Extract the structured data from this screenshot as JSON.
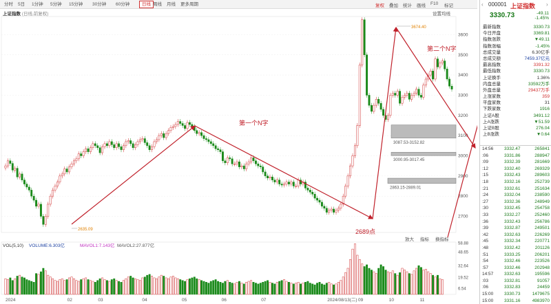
{
  "toolbar": {
    "tabs": [
      "分时",
      "5日",
      "1分钟",
      "5分钟",
      "15分钟",
      "30分钟",
      "60分钟",
      "日线",
      "周线",
      "月线",
      "更多周期"
    ],
    "active_tab": "日线",
    "buttons": [
      "复权",
      "叠加",
      "统计",
      "画线",
      "F10",
      "标记",
      "自选",
      "返回"
    ]
  },
  "chart_header": {
    "title": "上证指数",
    "subtitle": "(日线,前复权)",
    "settings": "设置均线"
  },
  "annotations": {
    "n1_label": "第一个N字",
    "n2_label": "第二个N字",
    "low_label": "2689点",
    "high_value": "3674.40",
    "low_value": "2635.09",
    "gap1": "3087.53-3152.82",
    "gap2": "3000.95-3017.45",
    "gap3": "2863.15-2889.01"
  },
  "volume_header": {
    "label": "VOL(5,10)",
    "volume": "VOLUME:6.303亿",
    "mavol1": "MAVOL1:7.143亿",
    "mavol2": "MAVOL2:27.877亿"
  },
  "volume_buttons": [
    "放大",
    "指标",
    "换指标"
  ],
  "chart_data": {
    "type": "candlestick",
    "title": "上证指数",
    "y_ticks": [
      2700,
      2800,
      2900,
      3000,
      3100,
      3200,
      3300,
      3400,
      3500,
      3600
    ],
    "ylim": [
      2620,
      3690
    ],
    "x_ticks": [
      "2024",
      "02",
      "03",
      "04",
      "05",
      "06",
      "07",
      "2024/08/13(二)",
      "09",
      "10",
      "11"
    ],
    "vol_ticks": [
      "58.88",
      "48.65",
      "32.64",
      "19.52",
      "6.54",
      "13.13"
    ],
    "annotated_points": [
      {
        "label": "low",
        "value": 2635.09
      },
      {
        "label": "2689点",
        "value": 2689
      },
      {
        "label": "high",
        "value": 3674.4
      }
    ],
    "gaps": [
      [
        3087.53,
        3152.82
      ],
      [
        3000.95,
        3017.45
      ],
      [
        2863.15,
        2889.01
      ]
    ],
    "closes": [
      2950,
      2975,
      2962,
      2929,
      2938,
      2895,
      2910,
      2880,
      2860,
      2845,
      2830,
      2800,
      2780,
      2750,
      2760,
      2700,
      2660,
      2700,
      2760,
      2800,
      2830,
      2850,
      2870,
      2900,
      2910,
      2935,
      2920,
      2945,
      2960,
      2975,
      2985,
      3010,
      3000,
      3020,
      3035,
      3020,
      3040,
      3060,
      3050,
      3040,
      3015,
      3045,
      3060,
      3050,
      3070,
      3055,
      3040,
      3060,
      3045,
      3030,
      3050,
      3070,
      3075,
      3060,
      3040,
      3055,
      3070,
      3080,
      3085,
      3065,
      3050,
      3030,
      3045,
      3070,
      3080,
      3100,
      3110,
      3090,
      3110,
      3125,
      3140,
      3145,
      3155,
      3170,
      3160,
      3150,
      3135,
      3165,
      3155,
      3145,
      3125,
      3110,
      3115,
      3100,
      3085,
      3080,
      3070,
      3060,
      3050,
      3035,
      3030,
      3020,
      2975,
      2965,
      2990,
      2985,
      2960,
      2960,
      2970,
      2945,
      2950,
      2935,
      2960,
      2970,
      2990,
      2975,
      2960,
      2950,
      2945,
      2920,
      2900,
      2890,
      2895,
      2880,
      2870,
      2880,
      2860,
      2855,
      2860,
      2870,
      2860,
      2870,
      2850,
      2850,
      2880,
      2860,
      2870,
      2840,
      2830,
      2820,
      2810,
      2790,
      2780,
      2770,
      2750,
      2740,
      2720,
      2730,
      2736,
      2720,
      2730,
      2740,
      2760,
      2800,
      2850,
      2900,
      2950,
      3000,
      3050,
      3150,
      3450,
      3674,
      3500,
      3300,
      3250,
      3220,
      3250,
      3280,
      3260,
      3230,
      3200,
      3180,
      3200,
      3300,
      3310,
      3300,
      3320,
      3260,
      3290,
      3300,
      3310,
      3280,
      3300,
      3310,
      3330,
      3300,
      3290,
      3350,
      3380,
      3400,
      3420,
      3380,
      3480,
      3440,
      3460,
      3470,
      3430,
      3380,
      3345,
      3330
    ],
    "volumes": [
      18,
      17,
      19,
      16,
      18,
      21,
      22,
      20,
      19,
      17,
      16,
      15,
      14,
      24,
      23,
      26,
      30,
      27,
      22,
      20,
      18,
      16,
      15,
      17,
      18,
      16,
      17,
      19,
      20,
      18,
      16,
      15,
      17,
      18,
      19,
      17,
      16,
      15,
      14,
      16,
      18,
      19,
      17,
      16,
      15,
      17,
      18,
      16,
      15,
      14,
      16,
      18,
      20,
      21,
      19,
      18,
      17,
      16,
      19,
      20,
      22,
      23,
      21,
      19,
      18,
      20,
      22,
      21,
      19,
      18,
      20,
      21,
      19,
      18,
      17,
      16,
      15,
      17,
      18,
      19,
      20,
      18,
      17,
      16,
      15,
      14,
      13,
      15,
      16,
      17,
      15,
      14,
      13,
      15,
      16,
      14,
      13,
      12,
      14,
      15,
      13,
      12,
      14,
      15,
      16,
      14,
      13,
      12,
      13,
      14,
      15,
      16,
      14,
      13,
      12,
      14,
      15,
      16,
      17,
      15,
      14,
      13,
      12,
      13,
      14,
      12,
      13,
      14,
      15,
      13,
      12,
      11,
      13,
      14,
      12,
      11,
      13,
      14,
      12,
      11,
      12,
      14,
      16,
      20,
      25,
      30,
      40,
      52,
      58,
      45,
      40,
      35,
      32,
      34,
      30,
      28,
      26,
      24,
      30,
      34,
      32,
      28,
      26,
      25,
      27,
      24,
      22,
      25,
      30,
      28,
      26,
      24,
      23,
      27,
      30,
      33,
      31,
      28,
      29,
      26,
      24,
      22,
      20,
      22,
      18,
      17
    ]
  },
  "sidebar": {
    "code": "000001",
    "name": "上证指数",
    "price": "3330.73",
    "change": "-49.11",
    "change_pct": "-1.45%",
    "stats": [
      {
        "k": "最新指数",
        "v": "3330.73",
        "c": "#1a7a1a"
      },
      {
        "k": "今日开盘",
        "v": "3369.81",
        "c": "#1a7a1a"
      },
      {
        "k": "指数涨跌",
        "v": "▼49.11",
        "c": "#1a7a1a"
      },
      {
        "k": "指数涨幅",
        "v": "-1.45%",
        "c": "#1a7a1a"
      },
      {
        "k": "总成交量",
        "v": "6.30亿手",
        "c": "#333"
      },
      {
        "k": "总成交额",
        "v": "7459.37亿元",
        "c": "#1a3fa0"
      },
      {
        "k": "最高指数",
        "v": "3391.32",
        "c": "#d03030"
      },
      {
        "k": "最低指数",
        "v": "3330.73",
        "c": "#1a7a1a"
      },
      {
        "k": "上证换手",
        "v": "1.36%",
        "c": "#333"
      },
      {
        "k": "内盘总量",
        "v": "33592万手",
        "c": "#1a7a1a"
      },
      {
        "k": "外盘总量",
        "v": "29437万手",
        "c": "#d03030"
      },
      {
        "k": "上涨家数",
        "v": "359",
        "c": "#d03030"
      },
      {
        "k": "平盘家数",
        "v": "31",
        "c": "#333"
      },
      {
        "k": "下跌家数",
        "v": "1916",
        "c": "#1a7a1a"
      },
      {
        "k": "上证A股",
        "v": "3491.12",
        "c": "#1a7a1a"
      },
      {
        "k": "上A涨跌",
        "v": "▼51.59",
        "c": "#1a7a1a"
      },
      {
        "k": "上证B股",
        "v": "276.04",
        "c": "#1a7a1a"
      },
      {
        "k": "上B涨跌",
        "v": "▼0.64",
        "c": "#1a7a1a"
      }
    ],
    "ticks": [
      {
        "t": "14:56",
        "p": "3332.47",
        "q": "265841"
      },
      {
        "t": ":06",
        "p": "3331.86",
        "q": "288947"
      },
      {
        "t": ":09",
        "p": "3332.39",
        "q": "281669"
      },
      {
        "t": ":12",
        "p": "3332.40",
        "q": "269329"
      },
      {
        "t": ":15",
        "p": "3332.43",
        "q": "289603"
      },
      {
        "t": ":18",
        "p": "3332.16",
        "q": "252739"
      },
      {
        "t": ":21",
        "p": "3332.61",
        "q": "251634"
      },
      {
        "t": ":24",
        "p": "3332.04",
        "q": "238590"
      },
      {
        "t": ":27",
        "p": "3332.36",
        "q": "248949"
      },
      {
        "t": ":30",
        "p": "3332.45",
        "q": "254758"
      },
      {
        "t": ":33",
        "p": "3332.27",
        "q": "252460"
      },
      {
        "t": ":36",
        "p": "3332.43",
        "q": "256786"
      },
      {
        "t": ":39",
        "p": "3332.87",
        "q": "249501"
      },
      {
        "t": ":42",
        "p": "3332.63",
        "q": "226269"
      },
      {
        "t": ":45",
        "p": "3332.34",
        "q": "220771"
      },
      {
        "t": ":48",
        "p": "3332.42",
        "q": "201126"
      },
      {
        "t": ":51",
        "p": "3333.25",
        "q": "206201"
      },
      {
        "t": ":54",
        "p": "3332.46",
        "q": "223526"
      },
      {
        "t": ":57",
        "p": "3332.46",
        "q": "202948"
      },
      {
        "t": "14:57",
        "p": "3332.63",
        "q": "195596"
      },
      {
        "t": ":03",
        "p": "3332.81",
        "q": "91057"
      },
      {
        "t": ":06",
        "p": "3332.83",
        "q": "24459"
      },
      {
        "t": "15:00",
        "p": "3330.73",
        "q": "1479675"
      },
      {
        "t": "15:00",
        "p": "3331.16",
        "q": "4983970"
      }
    ]
  }
}
